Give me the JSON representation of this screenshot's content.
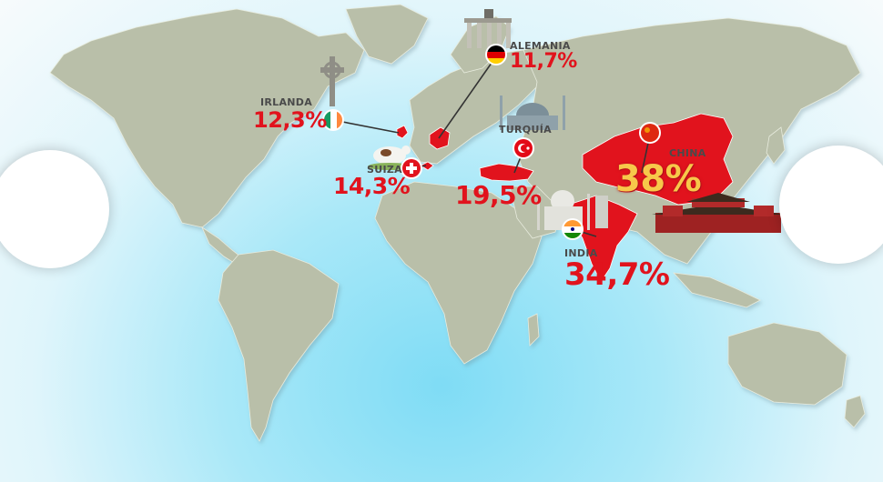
{
  "colors": {
    "highlight": "#e1131d",
    "land": "#b9bfa9",
    "sea": "#a9e8f8",
    "china_value": "#f7c84a"
  },
  "markers": [
    {
      "id": "irlanda",
      "country": "IRLANDA",
      "value": "12,3%",
      "flag": "ireland-flag-icon",
      "landmark": "celtic-cross-icon"
    },
    {
      "id": "alemania",
      "country": "ALEMANIA",
      "value": "11,7%",
      "flag": "germany-flag-icon",
      "landmark": "brandenburg-gate-icon"
    },
    {
      "id": "suiza",
      "country": "SUIZA",
      "value": "14,3%",
      "flag": "switzerland-flag-icon",
      "landmark": "cow-icon"
    },
    {
      "id": "turquia",
      "country": "TURQUÍA",
      "value": "19,5%",
      "flag": "turkey-flag-icon",
      "landmark": "mosque-icon"
    },
    {
      "id": "india",
      "country": "INDIA",
      "value": "34,7%",
      "flag": "india-flag-icon",
      "landmark": "taj-mahal-icon"
    },
    {
      "id": "china",
      "country": "CHINA",
      "value": "38%",
      "flag": "china-flag-icon",
      "landmark": "forbidden-city-icon"
    }
  ]
}
